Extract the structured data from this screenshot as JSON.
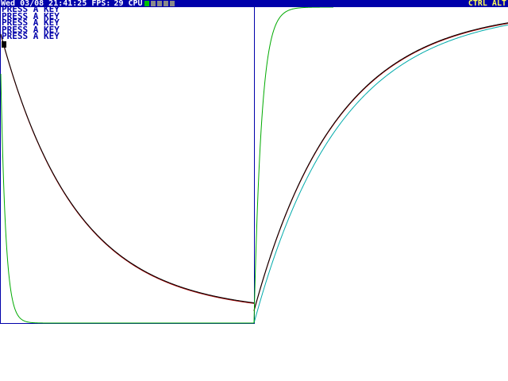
{
  "status_bar": {
    "day": "Wed",
    "date": "03/08",
    "time": "21:41:25",
    "fps_label": "FPS:",
    "fps_value": "29",
    "cpu_label": "CPU",
    "cpu_cells": [
      true,
      false,
      false,
      false,
      false
    ],
    "modifiers": "CTRL ALT",
    "bg_color": "#0000aa",
    "text_color": "#ffffff",
    "modifier_color": "#ffff55"
  },
  "console": {
    "lines": [
      "PRESS A KEY",
      "PRESS A KEY",
      "PRESS A KEY",
      "PRESS A KEY",
      "PRESS A KEY"
    ],
    "text_color": "#0000aa"
  },
  "plot": {
    "frame_color": "#0000aa",
    "curves": [
      {
        "id": "decay-slow-red",
        "color": "#aa0000"
      },
      {
        "id": "decay-slow-black",
        "color": "#000000"
      },
      {
        "id": "decay-fast-green",
        "color": "#00aa00"
      },
      {
        "id": "rise-slow-cyan",
        "color": "#00aaaa"
      },
      {
        "id": "rise-slow-red",
        "color": "#aa0000"
      },
      {
        "id": "rise-slow-black",
        "color": "#000000"
      },
      {
        "id": "rise-fast-green",
        "color": "#00aa00"
      }
    ]
  }
}
